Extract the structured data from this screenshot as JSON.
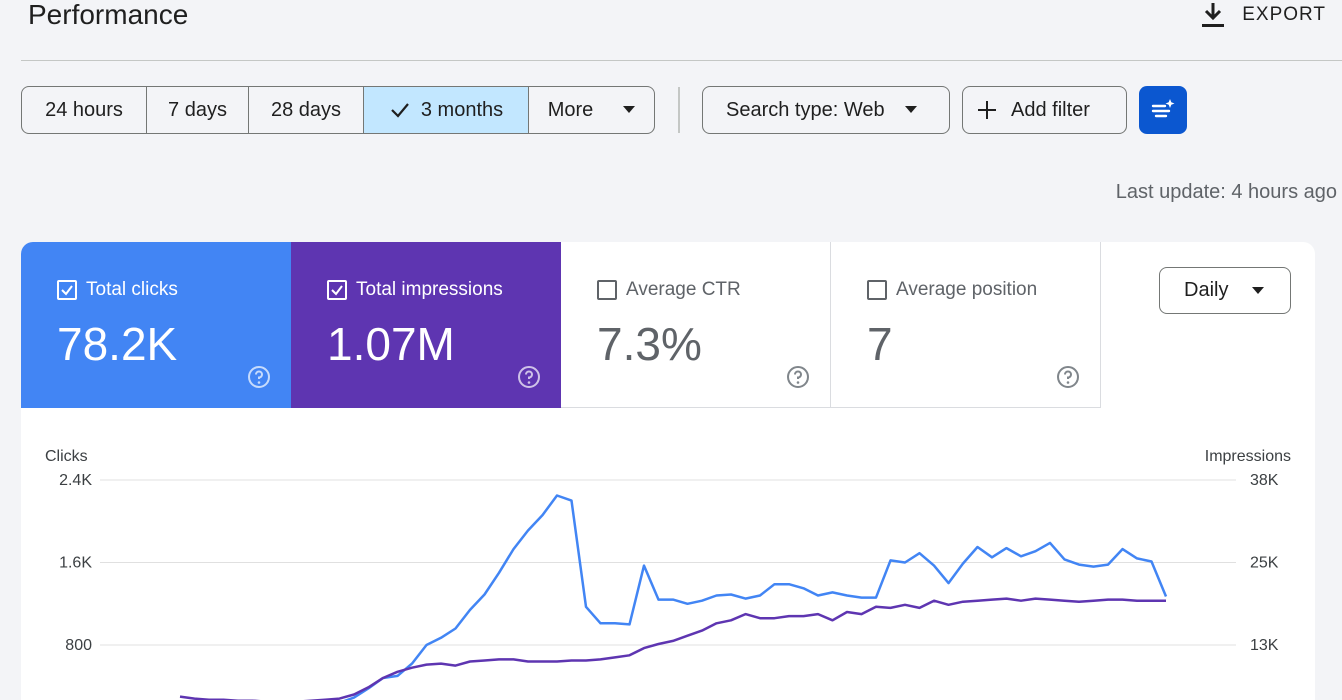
{
  "header": {
    "title": "Performance",
    "export_label": "EXPORT"
  },
  "date_range": {
    "options": [
      {
        "label": "24 hours",
        "selected": false
      },
      {
        "label": "7 days",
        "selected": false
      },
      {
        "label": "28 days",
        "selected": false
      },
      {
        "label": "3 months",
        "selected": true
      },
      {
        "label": "More",
        "selected": false
      }
    ]
  },
  "filters": {
    "search_type_label": "Search type: Web",
    "add_filter_label": "Add filter"
  },
  "last_update": "Last update: 4 hours ago",
  "metrics": [
    {
      "label": "Total clicks",
      "value": "78.2K",
      "checked": true
    },
    {
      "label": "Total impressions",
      "value": "1.07M",
      "checked": true
    },
    {
      "label": "Average CTR",
      "value": "7.3%",
      "checked": false
    },
    {
      "label": "Average position",
      "value": "7",
      "checked": false
    }
  ],
  "granularity": "Daily",
  "colors": {
    "clicks": "#4285f4",
    "impressions": "#5e35b1",
    "primary_button": "#0b57d0",
    "selected_segment": "#c2e7ff"
  },
  "chart_data": {
    "type": "line",
    "ylabel_left": "Clicks",
    "ylabel_right": "Impressions",
    "left_ticks": [
      "2.4K",
      "1.6K",
      "800"
    ],
    "right_ticks": [
      "38K",
      "25K",
      "13K"
    ],
    "left_tick_values": [
      2400,
      1600,
      800
    ],
    "right_tick_values": [
      38000,
      25000,
      13000
    ],
    "grid": true,
    "series": [
      {
        "name": "Clicks",
        "axis": "left",
        "values": [
          170,
          160,
          155,
          150,
          145,
          140,
          135,
          135,
          150,
          180,
          200,
          240,
          290,
          380,
          480,
          500,
          620,
          800,
          870,
          960,
          1140,
          1290,
          1500,
          1730,
          1910,
          2060,
          2250,
          2200,
          1170,
          1010,
          1010,
          1000,
          1570,
          1240,
          1240,
          1200,
          1230,
          1280,
          1290,
          1250,
          1280,
          1390,
          1390,
          1350,
          1280,
          1310,
          1280,
          1260,
          1260,
          1620,
          1600,
          1690,
          1570,
          1400,
          1590,
          1750,
          1650,
          1740,
          1660,
          1710,
          1790,
          1630,
          1580,
          1560,
          1580,
          1730,
          1640,
          1610,
          1270
        ]
      },
      {
        "name": "Impressions",
        "axis": "left",
        "values": [
          300,
          280,
          270,
          270,
          260,
          260,
          250,
          250,
          250,
          260,
          270,
          280,
          320,
          390,
          480,
          540,
          580,
          610,
          620,
          600,
          640,
          650,
          660,
          660,
          640,
          640,
          640,
          650,
          650,
          660,
          680,
          700,
          770,
          810,
          840,
          890,
          940,
          1010,
          1040,
          1100,
          1060,
          1060,
          1080,
          1080,
          1100,
          1040,
          1120,
          1100,
          1170,
          1160,
          1190,
          1160,
          1230,
          1190,
          1220,
          1230,
          1240,
          1250,
          1230,
          1250,
          1240,
          1230,
          1220,
          1230,
          1240,
          1240,
          1230,
          1230,
          1230
        ]
      }
    ]
  }
}
